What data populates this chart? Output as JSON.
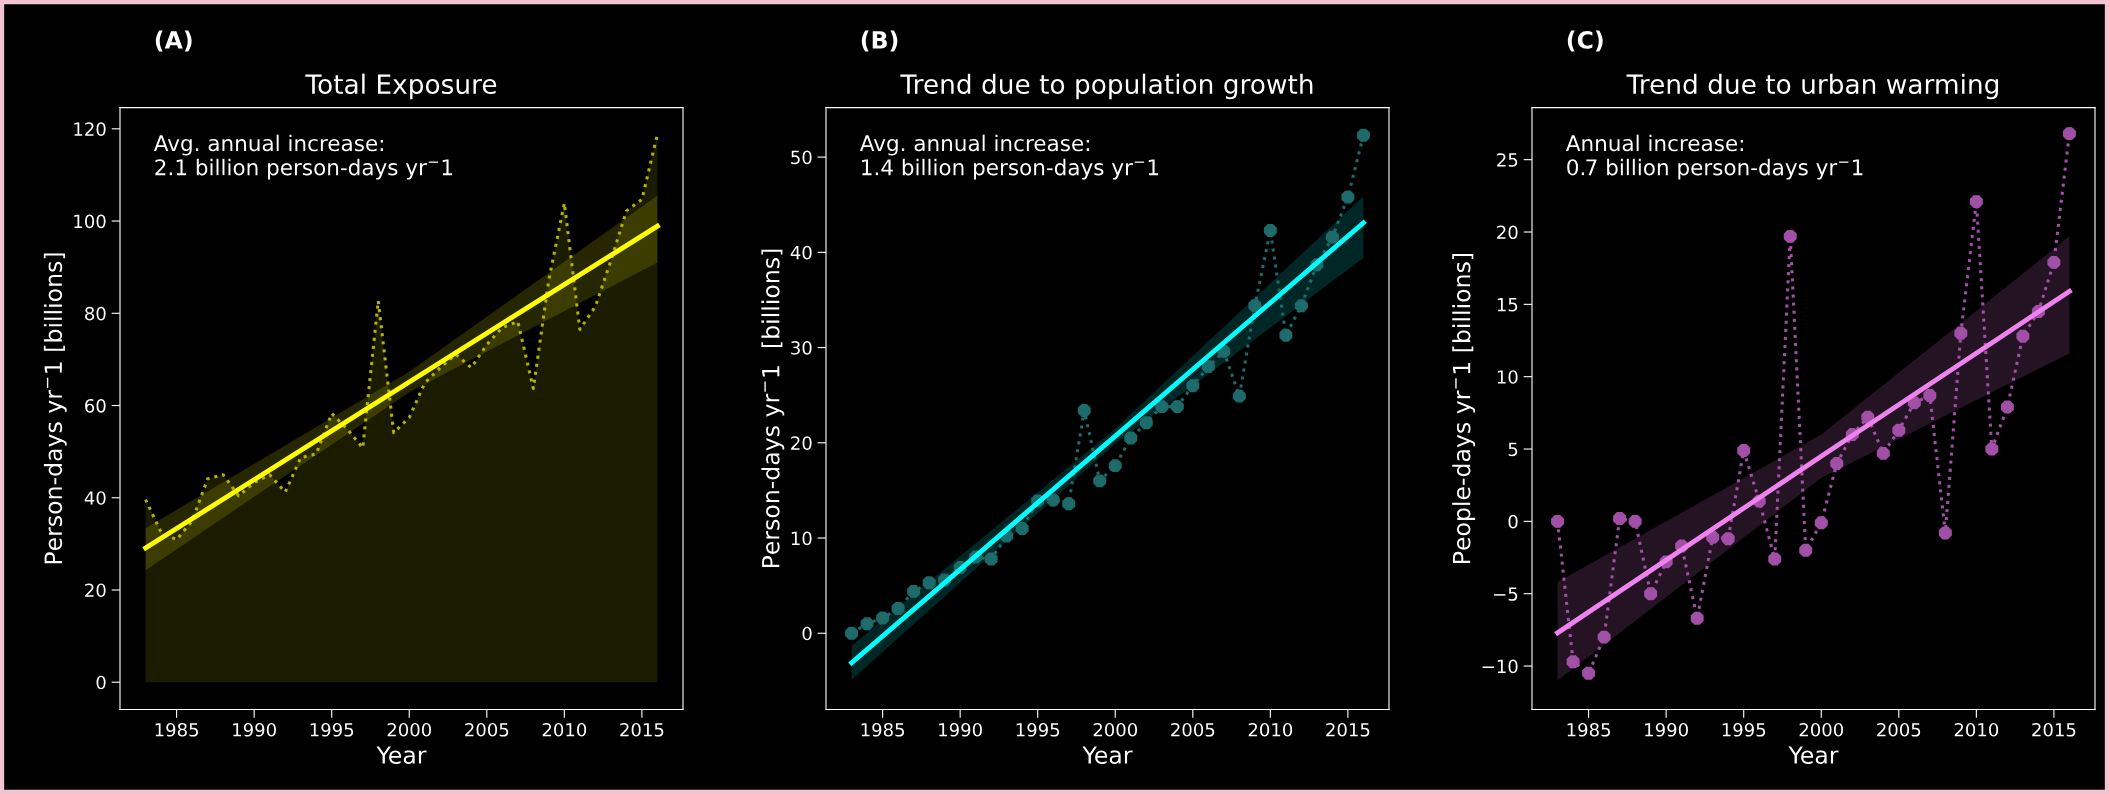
{
  "chart_data": [
    {
      "type": "line",
      "title": "Total Exposure",
      "xlabel": "Year",
      "ylabel": "Person-days yr$^{−}$1 [billions]",
      "x": [
        1983,
        1984,
        1985,
        1986,
        1987,
        1988,
        1989,
        1990,
        1991,
        1992,
        1993,
        1994,
        1995,
        1996,
        1997,
        1998,
        1999,
        2000,
        2001,
        2002,
        2003,
        2004,
        2005,
        2006,
        2007,
        2008,
        2009,
        2010,
        2011,
        2012,
        2013,
        2014,
        2015,
        2016
      ],
      "series": [
        {
          "type": "area",
          "color": "#b3b300",
          "line_style": "dotted",
          "marker": "none",
          "values": [
            39.6,
            32.5,
            30.9,
            35.0,
            44.1,
            45.0,
            40.4,
            43.3,
            45.0,
            41.2,
            48.7,
            49.5,
            58.3,
            54.9,
            50.8,
            82.7,
            54.1,
            57.4,
            64.9,
            68.2,
            71.1,
            68.2,
            73.2,
            76.9,
            78.2,
            63.7,
            87.3,
            103.9,
            76.5,
            81.5,
            91.4,
            102.2,
            104.7,
            118.8
          ]
        },
        {
          "color": "#ffff00",
          "line_style": "solid",
          "marker": "none",
          "x": [
            1983,
            2000,
            2016
          ],
          "values": [
            29.1,
            65.1,
            98.9
          ],
          "lower": [
            24.3,
            62.9,
            91.0
          ],
          "upper": [
            33.4,
            67.3,
            105.5
          ]
        }
      ],
      "xlim": [
        1981.35,
        2017.65
      ],
      "xticks": [
        1985,
        1990,
        1995,
        2000,
        2005,
        2010,
        2015
      ],
      "ylim": [
        -5.9,
        124.6
      ],
      "yticks": [
        0,
        20,
        40,
        60,
        80,
        100,
        120
      ],
      "annotations": [
        "(A)",
        "Avg. annual increase:\n2.1 billion person-days yr$^{−}$1"
      ]
    },
    {
      "type": "line",
      "title": "Trend due to population growth",
      "xlabel": "Year",
      "ylabel": "Person-days yr$^{−}$1  [billions]",
      "x": [
        1983,
        1984,
        1985,
        1986,
        1987,
        1988,
        1989,
        1990,
        1991,
        1992,
        1993,
        1994,
        1995,
        1996,
        1997,
        1998,
        1999,
        2000,
        2001,
        2002,
        2003,
        2004,
        2005,
        2006,
        2007,
        2008,
        2009,
        2010,
        2011,
        2012,
        2013,
        2014,
        2015,
        2016
      ],
      "series": [
        {
          "color": "#1d6b6b",
          "line_style": "dotted",
          "marker": "circle",
          "values": [
            0.0,
            1.0,
            1.6,
            2.6,
            4.4,
            5.3,
            5.6,
            6.9,
            8.0,
            7.8,
            10.2,
            11.0,
            13.9,
            14.0,
            13.6,
            23.4,
            16.0,
            17.6,
            20.5,
            22.1,
            23.8,
            23.8,
            26.0,
            28.0,
            29.6,
            24.9,
            34.4,
            42.3,
            31.3,
            34.4,
            38.7,
            41.6,
            45.8,
            52.3
          ]
        },
        {
          "color": "#00ffff",
          "line_style": "solid",
          "marker": "none",
          "x": [
            1983,
            2000,
            2016
          ],
          "values": [
            -3.1,
            20.7,
            43.1
          ],
          "lower": [
            -4.9,
            19.9,
            39.4
          ],
          "upper": [
            -1.3,
            21.5,
            45.9
          ]
        }
      ],
      "xlim": [
        1981.35,
        2017.65
      ],
      "xticks": [
        1985,
        1990,
        1995,
        2000,
        2005,
        2010,
        2015
      ],
      "ylim": [
        -8.0,
        55.2
      ],
      "yticks": [
        0,
        10,
        20,
        30,
        40,
        50
      ],
      "annotations": [
        "(B)",
        "Avg. annual increase:\n1.4 billion person-days yr$^{−}$1"
      ]
    },
    {
      "type": "line",
      "title": "Trend due to urban warming",
      "xlabel": "Year",
      "ylabel": "People-days yr$^{−}$1 [billions]",
      "x": [
        1983,
        1984,
        1985,
        1986,
        1987,
        1988,
        1989,
        1990,
        1991,
        1992,
        1993,
        1994,
        1995,
        1996,
        1997,
        1998,
        1999,
        2000,
        2001,
        2002,
        2003,
        2004,
        2005,
        2006,
        2007,
        2008,
        2009,
        2010,
        2011,
        2012,
        2013,
        2014,
        2015,
        2016
      ],
      "series": [
        {
          "color": "#a24fa8",
          "line_style": "dotted",
          "marker": "circle",
          "values": [
            0.0,
            -9.7,
            -10.5,
            -8.0,
            0.2,
            0.0,
            -5.0,
            -2.8,
            -1.7,
            -6.7,
            -1.1,
            -1.2,
            4.9,
            1.4,
            -2.6,
            19.7,
            -2.0,
            -0.1,
            4.0,
            6.0,
            7.2,
            4.7,
            6.3,
            8.2,
            8.7,
            -0.8,
            13.0,
            22.1,
            5.0,
            7.9,
            12.8,
            14.5,
            17.9,
            26.8
          ]
        },
        {
          "color": "#ee82ee",
          "line_style": "solid",
          "marker": "none",
          "x": [
            1983,
            2000,
            2016
          ],
          "values": [
            -7.7,
            4.5,
            15.9
          ],
          "lower": [
            -11.0,
            3.0,
            11.6
          ],
          "upper": [
            -4.2,
            6.0,
            19.7
          ]
        }
      ],
      "xlim": [
        1981.35,
        2017.65
      ],
      "xticks": [
        1985,
        1990,
        1995,
        2000,
        2005,
        2010,
        2015
      ],
      "ylim": [
        -13.0,
        28.6
      ],
      "yticks": [
        {
          "value": -10,
          "label": "−10"
        },
        {
          "value": -5,
          "label": "−5"
        },
        0,
        5,
        10,
        15,
        20,
        25
      ],
      "annotations": [
        "(C)",
        "Annual increase:\n0.7 billion person-days yr$^{−}$1"
      ]
    }
  ]
}
